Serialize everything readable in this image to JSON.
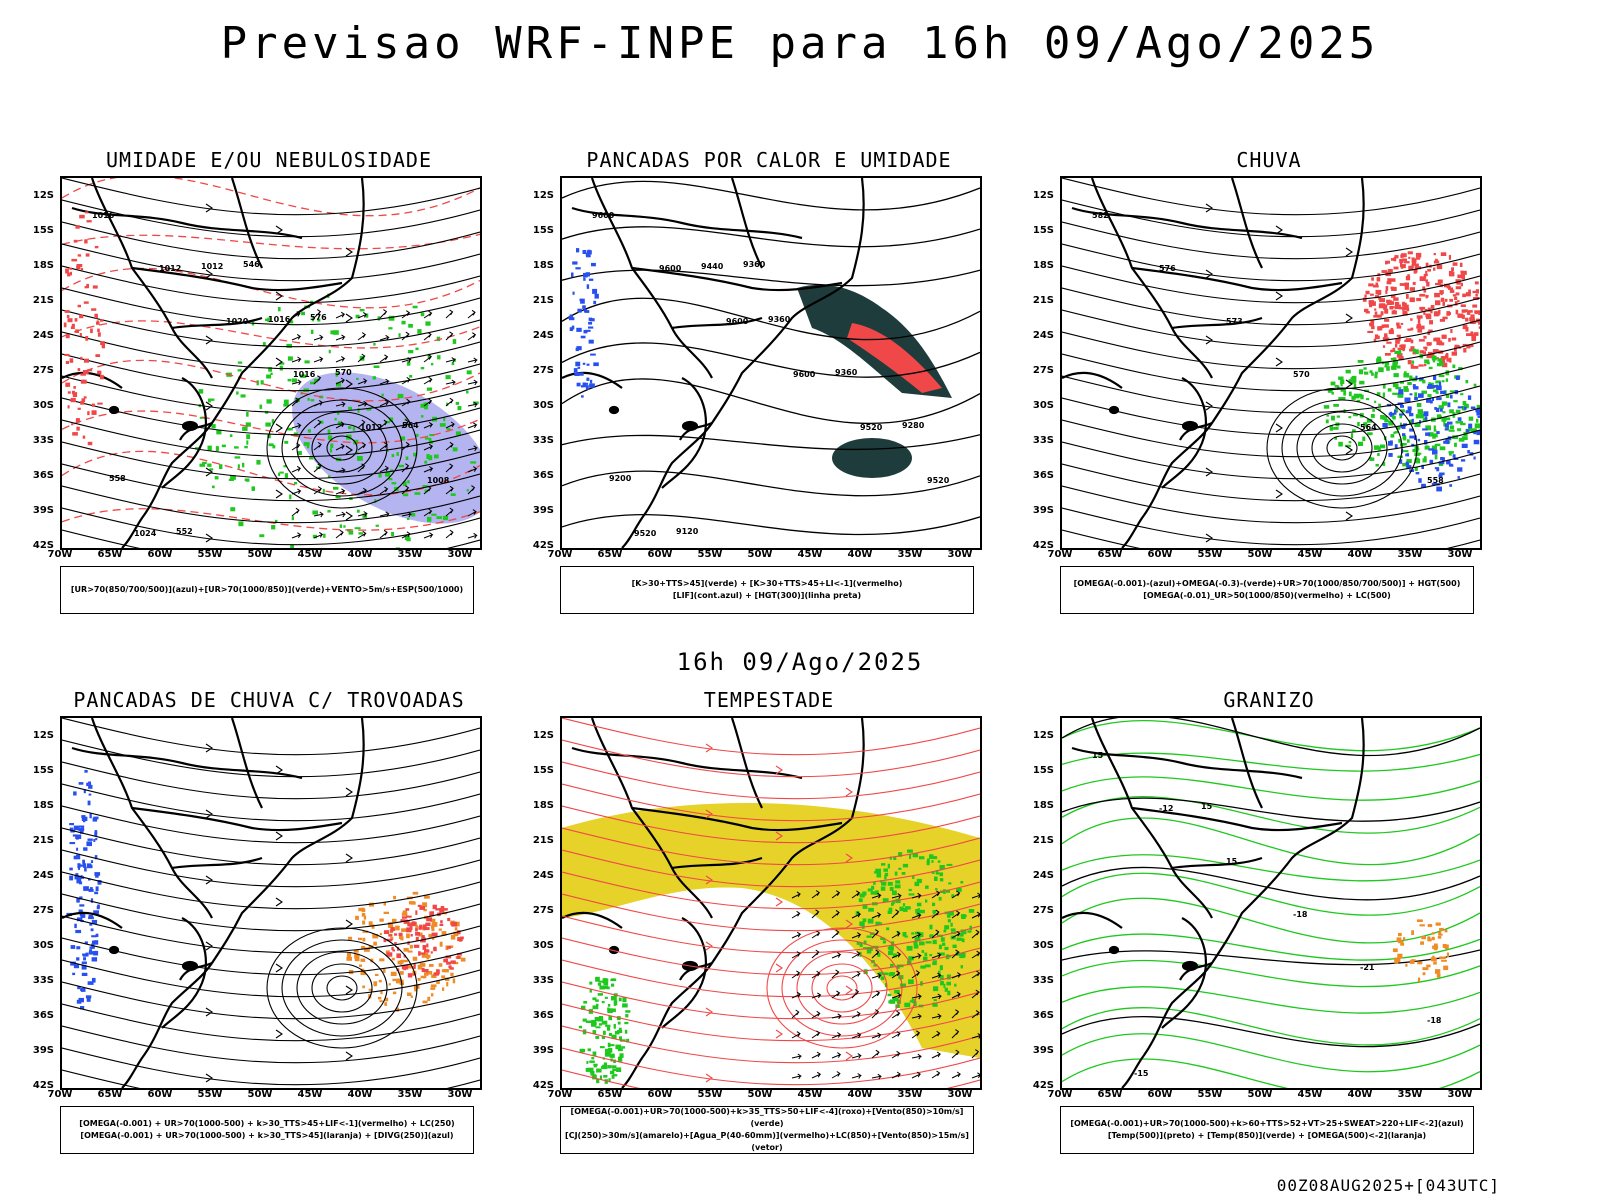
{
  "header": {
    "title": "Previsao WRF-INPE  para 16h 09/Ago/2025"
  },
  "middle_label": "16h 09/Ago/2025",
  "footer": "00Z08AUG2025+[043UTC]",
  "axes": {
    "lat_labels": [
      "12S",
      "15S",
      "18S",
      "21S",
      "24S",
      "27S",
      "30S",
      "33S",
      "36S",
      "39S",
      "42S"
    ],
    "lon_labels": [
      "70W",
      "65W",
      "60W",
      "55W",
      "50W",
      "45W",
      "40W",
      "35W",
      "30W"
    ]
  },
  "colors": {
    "red": "#f04848",
    "green": "#1ec81e",
    "blue": "#2850f0",
    "purple_fill": "#b4b4f0",
    "dark_teal": "#1e3c3c",
    "yellow": "#e6d228",
    "orange": "#f08c28",
    "black": "#000000"
  },
  "panels": [
    {
      "id": "umidade",
      "title": "UMIDADE E/OU NEBULOSIDADE",
      "legend": [
        "[UR>70(850/700/500)](azul)+[UR>70(1000/850)](verde)+VENTO>5m/s+ESP(500/1000)"
      ],
      "contour_labels": [
        "1016",
        "1012",
        "1020",
        "1016",
        "1012",
        "1008",
        "1024",
        "1012",
        "1016",
        "570",
        "564",
        "558",
        "552",
        "546",
        "576"
      ],
      "layers": [
        "purple_fill",
        "green_contours",
        "red_dashed",
        "black_isobars",
        "wind_arrows"
      ]
    },
    {
      "id": "pancadas-calor",
      "title": "PANCADAS POR CALOR E UMIDADE",
      "legend": [
        "[K>30+TTS>45](verde) + [K>30+TTS>45+LI<-1](vermelho)",
        "[LIF](cont.azul) + [HGT(300)](linha preta)"
      ],
      "contour_labels": [
        "9600",
        "9600",
        "9600",
        "9600",
        "9520",
        "9520",
        "9520",
        "9440",
        "9360",
        "9360",
        "9280",
        "9200",
        "9120",
        "9360"
      ],
      "layers": [
        "dark_teal_fill",
        "red_fill",
        "blue_contours",
        "black_contours"
      ]
    },
    {
      "id": "chuva",
      "title": "CHUVA",
      "legend": [
        "[OMEGA(-0.001)-(azul)+OMEGA(-0.3)-(verde)+UR>70(1000/850/700/500)] + HGT(500)",
        "[OMEGA(-0.01)_UR>50(1000/850)(vermelho) + LC(500)"
      ],
      "contour_labels": [
        "582",
        "576",
        "573",
        "570",
        "564",
        "558"
      ],
      "layers": [
        "red_speckle",
        "green_speckle",
        "blue_speckle",
        "black_streamlines"
      ]
    },
    {
      "id": "pancadas-trovoadas",
      "title": "PANCADAS DE CHUVA C/ TROVOADAS",
      "legend": [
        "[OMEGA(-0.001) + UR>70(1000-500) + k>30_TTS>45+LIF<-1](vermelho) + LC(250)",
        "[OMEGA(-0.001) + UR>70(1000-500) + k>30_TTS>45](laranja) + [DIVG(250)](azul)"
      ],
      "contour_labels": [],
      "layers": [
        "blue_speckle",
        "orange_speckle",
        "red_speckle",
        "black_streamlines"
      ]
    },
    {
      "id": "tempestade",
      "title": "TEMPESTADE",
      "legend": [
        "[OMEGA(-0.001)+UR>70(1000-500)+k>35_TTS>50+LIF<-4](roxo)+[Vento(850)>10m/s](verde)",
        "[CJ(250)>30m/s](amarelo)+[Agua_P(40-60mm)](vermelho)+LC(850)+[Vento(850)>15m/s](vetor)"
      ],
      "contour_labels": [],
      "layers": [
        "yellow_band",
        "green_fill",
        "red_streamlines",
        "wind_arrows"
      ]
    },
    {
      "id": "granizo",
      "title": "GRANIZO",
      "legend": [
        "[OMEGA(-0.001)+UR>70(1000-500)+k>60+TTS>52+VT>25+SWEAT>220+LIF<-2](azul)",
        "[Temp(500)](preto) + [Temp(850)](verde) + [OMEGA(500)<-2](laranja)"
      ],
      "contour_labels": [
        "15",
        "-12",
        "15",
        "-18",
        "-21",
        "-18",
        "-15",
        "15"
      ],
      "layers": [
        "green_contours",
        "black_contours",
        "orange_speckle"
      ]
    }
  ]
}
